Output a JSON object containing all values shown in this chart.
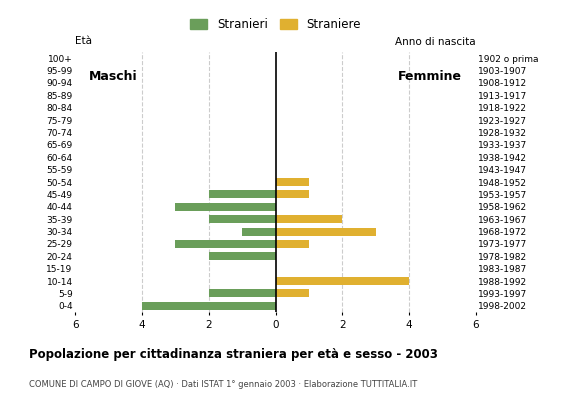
{
  "age_groups": [
    "0-4",
    "5-9",
    "10-14",
    "15-19",
    "20-24",
    "25-29",
    "30-34",
    "35-39",
    "40-44",
    "45-49",
    "50-54",
    "55-59",
    "60-64",
    "65-69",
    "70-74",
    "75-79",
    "80-84",
    "85-89",
    "90-94",
    "95-99",
    "100+"
  ],
  "birth_years": [
    "1998-2002",
    "1993-1997",
    "1988-1992",
    "1983-1987",
    "1978-1982",
    "1973-1977",
    "1968-1972",
    "1963-1967",
    "1958-1962",
    "1953-1957",
    "1948-1952",
    "1943-1947",
    "1938-1942",
    "1933-1937",
    "1928-1932",
    "1923-1927",
    "1918-1922",
    "1913-1917",
    "1908-1912",
    "1903-1907",
    "1902 o prima"
  ],
  "males": [
    4,
    2,
    0,
    0,
    2,
    3,
    1,
    2,
    3,
    2,
    0,
    0,
    0,
    0,
    0,
    0,
    0,
    0,
    0,
    0,
    0
  ],
  "females": [
    0,
    1,
    4,
    0,
    0,
    1,
    3,
    2,
    0,
    1,
    1,
    0,
    0,
    0,
    0,
    0,
    0,
    0,
    0,
    0,
    0
  ],
  "color_males": "#6a9e5a",
  "color_females": "#e0b030",
  "title": "Popolazione per cittadinanza straniera per età e sesso - 2003",
  "subtitle": "COMUNE DI CAMPO DI GIOVE (AQ) · Dati ISTAT 1° gennaio 2003 · Elaborazione TUTTITALIA.IT",
  "legend_males": "Stranieri",
  "legend_females": "Straniere",
  "label_maschi": "Maschi",
  "label_femmine": "Femmine",
  "age_label": "Età",
  "birth_year_label": "Anno di nascita",
  "xlim": 6,
  "background_color": "#ffffff",
  "grid_color": "#cccccc"
}
